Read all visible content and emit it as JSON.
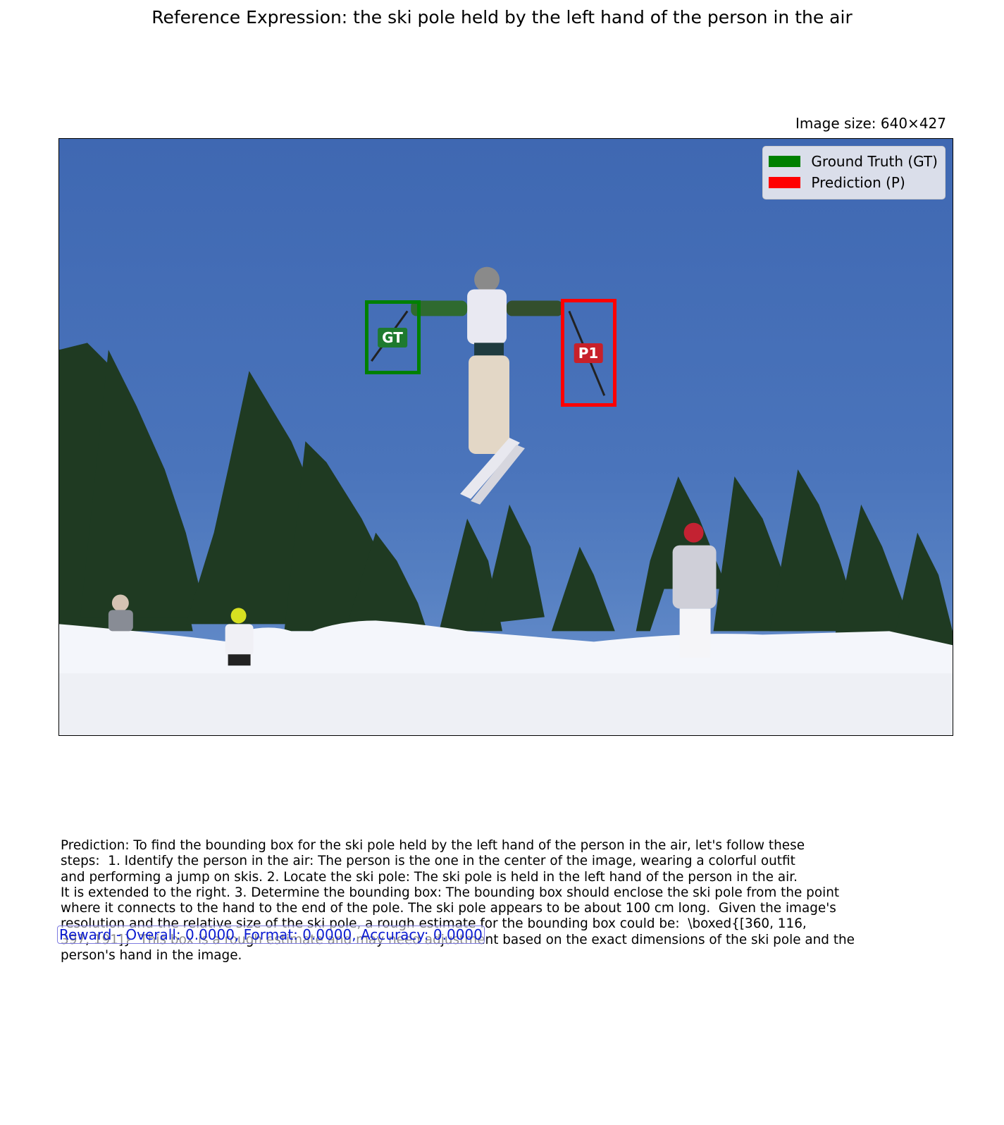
{
  "title": "Reference Expression: the ski pole held by the left hand of the person in the air",
  "image_size_label": "Image size: 640×427",
  "legend": [
    {
      "label": "Ground Truth (GT)",
      "color": "#008000"
    },
    {
      "label": "Prediction (P)",
      "color": "#ff0000"
    }
  ],
  "boxes": {
    "gt": {
      "tag": "GT",
      "color": "#008000",
      "tag_bg": "#1e7a2e"
    },
    "pred": {
      "tag": "P1",
      "color": "#ff0000",
      "tag_bg": "#c8202a"
    }
  },
  "prediction_lines": [
    "Prediction: To find the bounding box for the ski pole held by the left hand of the person in the air, let's follow these",
    "steps:  1. Identify the person in the air: The person is the one in the center of the image, wearing a colorful outfit",
    "and performing a jump on skis. 2. Locate the ski pole: The ski pole is held in the left hand of the person in the air.",
    "It is extended to the right. 3. Determine the bounding box: The bounding box should enclose the ski pole from the point",
    "where it connects to the hand to the end of the pole. The ski pole appears to be about 100 cm long.  Given the image's",
    "resolution and the relative size of the ski pole, a rough estimate for the bounding box could be:  \\boxed{[360, 116,",
    "397, 191]}  This box is a rough estimate and may need adjustment based on the exact dimensions of the ski pole and the",
    "person's hand in the image."
  ],
  "reward": "Reward - Overall: 0.0000, Format: 0.0000, Accuracy: 0.0000"
}
